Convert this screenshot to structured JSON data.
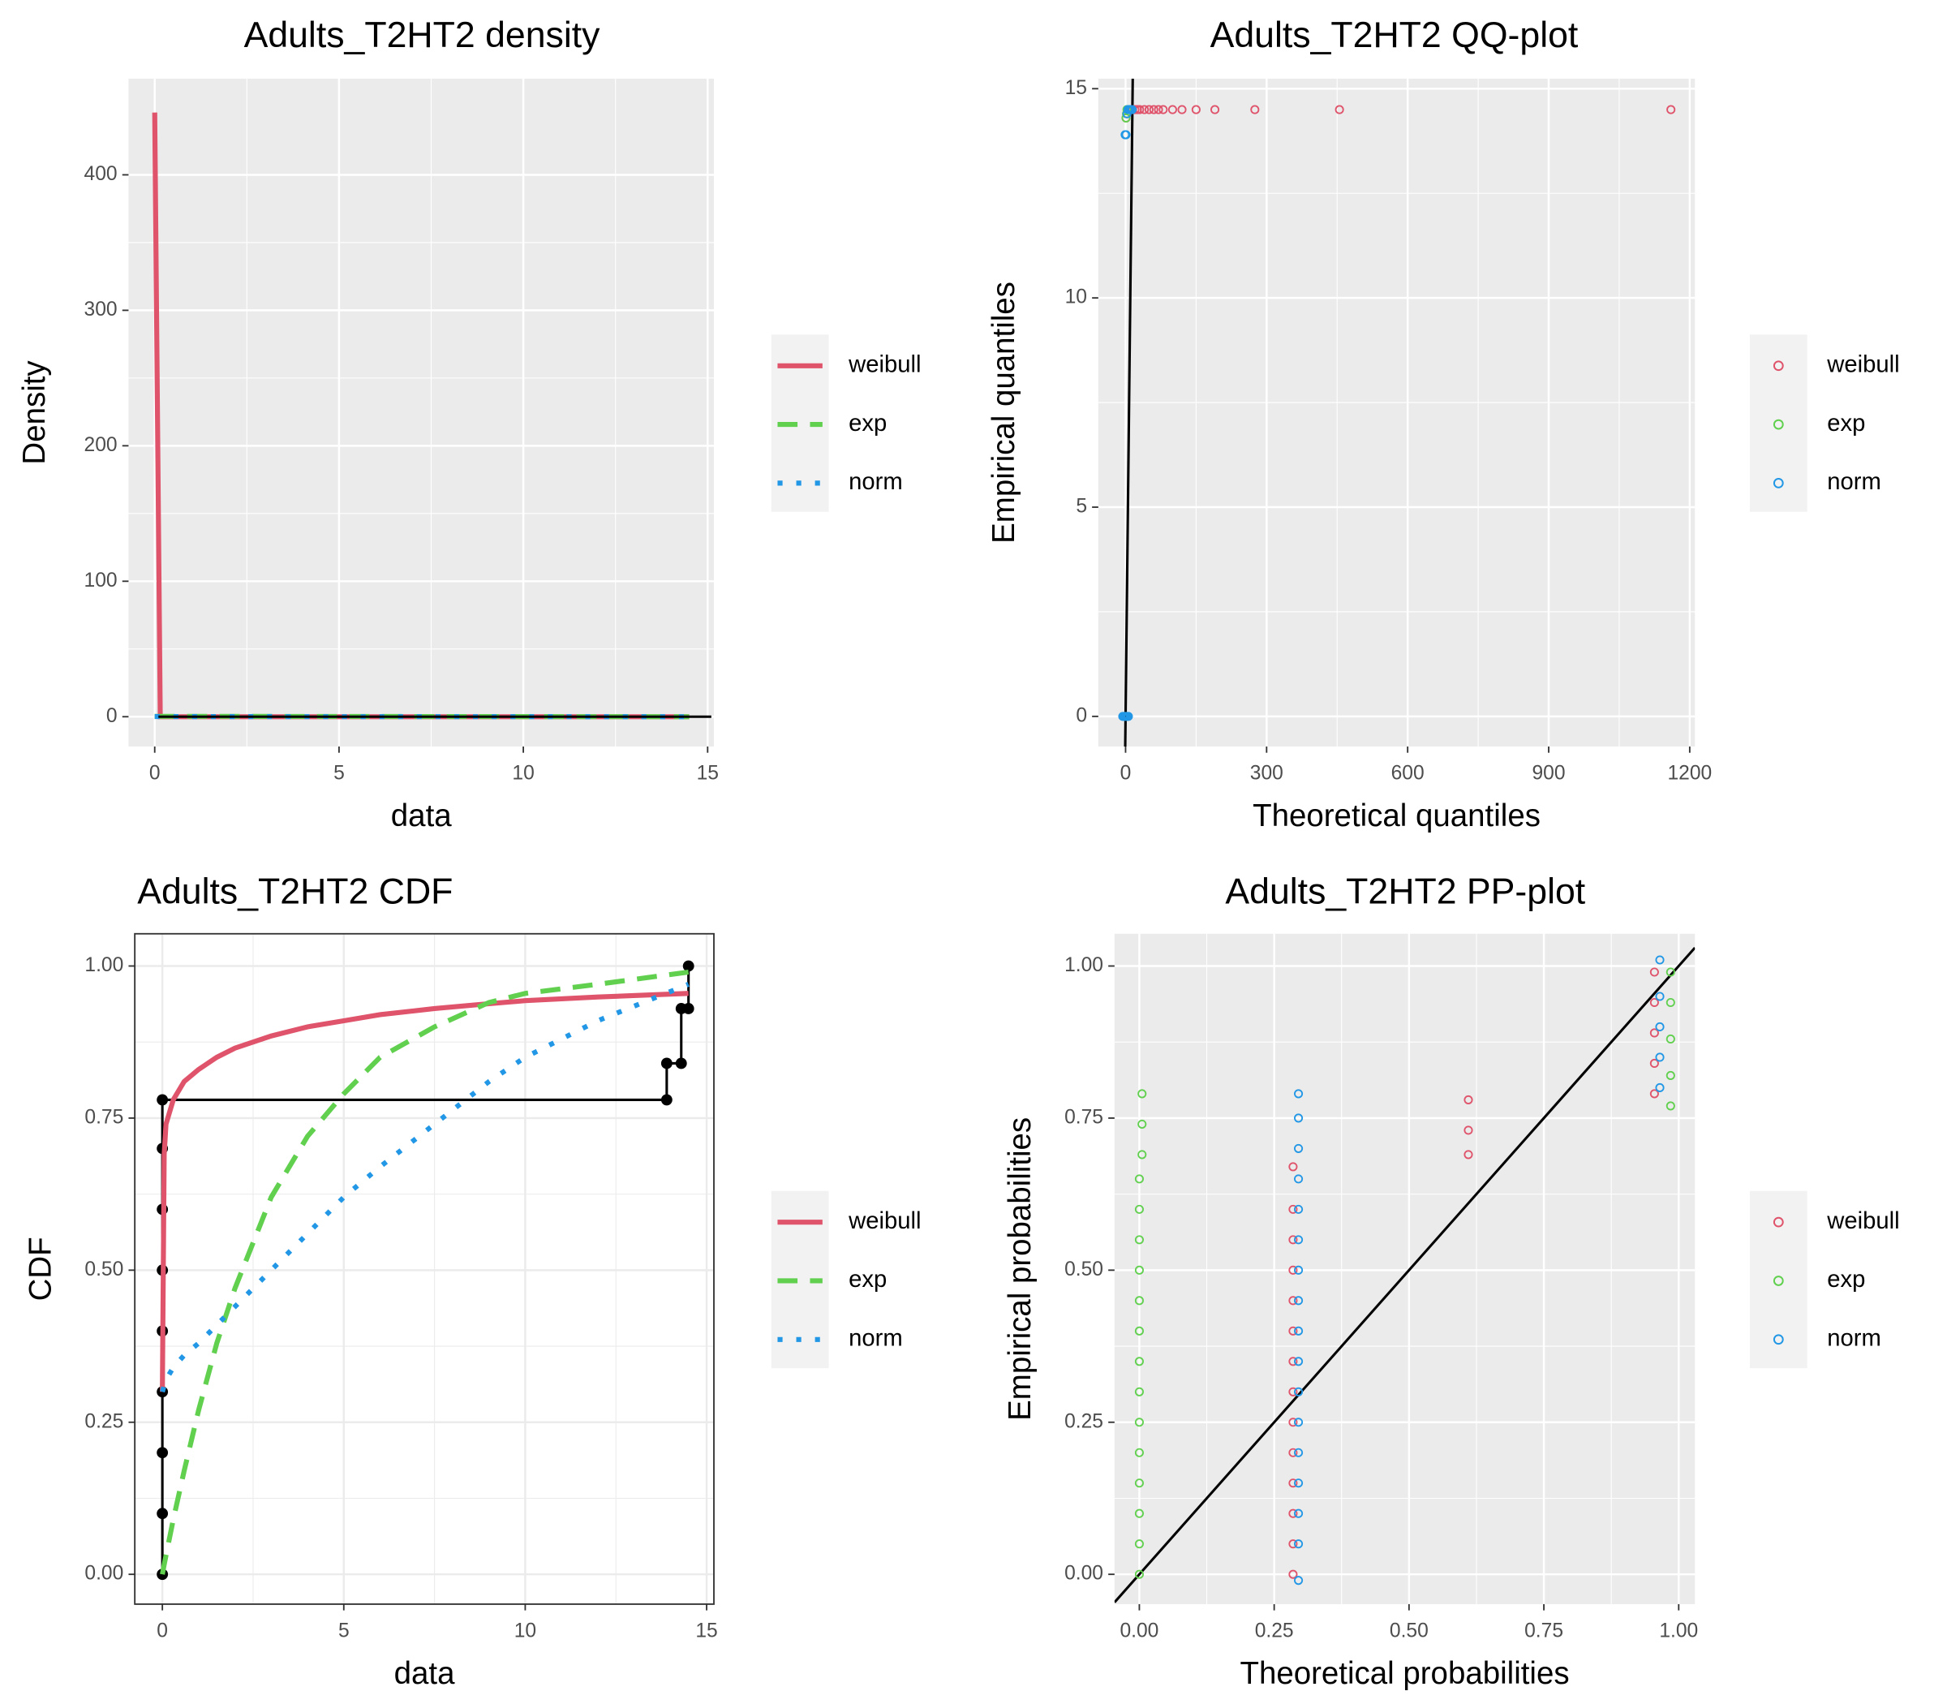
{
  "chart_data": [
    {
      "type": "line",
      "theme": "gray",
      "title": "Adults_T2HT2 density",
      "x_label": "data",
      "y_label": "Density",
      "legend": "right",
      "x": [
        0,
        0.15,
        14.5
      ],
      "series": [
        {
          "name": "weibull",
          "color": "#DF536B",
          "linestyle": "solid",
          "values": [
            446,
            0,
            0
          ]
        },
        {
          "name": "exp",
          "color": "#61D04F",
          "linestyle": "dashed",
          "values": [
            0.3,
            0.29,
            0
          ]
        },
        {
          "name": "norm",
          "color": "#2297E6",
          "linestyle": "dotted",
          "values": [
            0.1,
            0.1,
            0
          ]
        }
      ],
      "empirical": {
        "x": [
          0.1,
          15.1
        ],
        "values": [
          0,
          0
        ]
      },
      "xlim": [
        -0.71,
        15.17
      ],
      "ylim": [
        -22,
        471
      ],
      "xticks": [
        0,
        5,
        10,
        15
      ],
      "yticks": [
        0,
        100,
        200,
        300,
        400
      ],
      "grid": true
    },
    {
      "type": "scatter",
      "theme": "gray",
      "title": "Adults_T2HT2 QQ-plot",
      "x_label": "Theoretical quantiles",
      "y_label": "Empirical quantiles",
      "legend": "right",
      "diagonal": true,
      "series": [
        {
          "name": "weibull",
          "color": "#DF536B",
          "x": [
            1,
            3,
            6,
            10,
            15,
            20,
            25,
            30,
            40,
            50,
            60,
            70,
            80,
            100,
            120,
            150,
            190,
            275,
            455,
            1160
          ],
          "values": [
            14.3,
            14.4,
            14.5,
            14.5,
            14.5,
            14.5,
            14.5,
            14.5,
            14.5,
            14.5,
            14.5,
            14.5,
            14.5,
            14.5,
            14.5,
            14.5,
            14.5,
            14.5,
            14.5,
            14.5
          ]
        },
        {
          "name": "exp",
          "color": "#61D04F",
          "x": [
            -2,
            0,
            1,
            2,
            3
          ],
          "values": [
            0,
            0,
            14.3,
            14.4,
            14.5
          ]
        },
        {
          "name": "norm",
          "color": "#2297E6",
          "x": [
            -6,
            -4,
            -2,
            0,
            2,
            4,
            6,
            -1,
            1,
            3,
            5,
            8,
            11,
            14
          ],
          "values": [
            0,
            0,
            0,
            0,
            0,
            0,
            0,
            13.9,
            13.9,
            14.4,
            14.5,
            14.5,
            14.5,
            14.5
          ]
        }
      ],
      "xlim": [
        -58,
        1211
      ],
      "ylim": [
        -0.72,
        15.24
      ],
      "xticks": [
        0,
        300,
        600,
        900,
        1200
      ],
      "yticks": [
        0,
        5,
        10,
        15
      ],
      "grid": true
    },
    {
      "type": "line",
      "theme": "bw",
      "title": "Adults_T2HT2 CDF",
      "x_label": "data",
      "y_label": "CDF",
      "legend": "right",
      "x": [
        0,
        0.05,
        0.1,
        0.3,
        0.6,
        1,
        1.5,
        2,
        3,
        4,
        5,
        6,
        7.5,
        9,
        10,
        12,
        14.5
      ],
      "series": [
        {
          "name": "weibull",
          "color": "#DF536B",
          "linestyle": "solid",
          "values": [
            0.3,
            0.69,
            0.74,
            0.78,
            0.81,
            0.83,
            0.85,
            0.865,
            0.885,
            0.9,
            0.91,
            0.92,
            0.93,
            0.938,
            0.943,
            0.949,
            0.955
          ]
        },
        {
          "name": "exp",
          "color": "#61D04F",
          "linestyle": "dashed",
          "values": [
            0,
            0.016,
            0.031,
            0.09,
            0.17,
            0.27,
            0.38,
            0.47,
            0.62,
            0.72,
            0.79,
            0.85,
            0.9,
            0.94,
            0.955,
            0.97,
            0.99
          ]
        },
        {
          "name": "norm",
          "color": "#2297E6",
          "linestyle": "dotted",
          "values": [
            0.3,
            0.31,
            0.32,
            0.34,
            0.36,
            0.38,
            0.41,
            0.44,
            0.5,
            0.56,
            0.62,
            0.67,
            0.74,
            0.81,
            0.85,
            0.91,
            0.97
          ]
        }
      ],
      "empirical": {
        "x": [
          0,
          0,
          0,
          0,
          0,
          0,
          0,
          0,
          0,
          13.9,
          13.9,
          14.3,
          14.3,
          14.5,
          14.5
        ],
        "values": [
          0,
          0.1,
          0.2,
          0.3,
          0.4,
          0.5,
          0.6,
          0.7,
          0.78,
          0.78,
          0.84,
          0.84,
          0.93,
          0.93,
          1.0
        ]
      },
      "xlim": [
        -0.76,
        15.2
      ],
      "ylim": [
        -0.049,
        1.053
      ],
      "xticks": [
        0,
        5,
        10,
        15
      ],
      "yticks": [
        {
          "value": 0,
          "label": "0.00"
        },
        {
          "value": 0.25,
          "label": "0.25"
        },
        {
          "value": 0.5,
          "label": "0.50"
        },
        {
          "value": 0.75,
          "label": "0.75"
        },
        {
          "value": 1,
          "label": "1.00"
        }
      ],
      "grid": true
    },
    {
      "type": "scatter",
      "theme": "gray",
      "title": "Adults_T2HT2 PP-plot",
      "x_label": "Theoretical probabilities",
      "y_label": "Empirical probabilities",
      "legend": "right",
      "diagonal": true,
      "series": [
        {
          "name": "weibull",
          "color": "#DF536B",
          "x": [
            0.285,
            0.285,
            0.285,
            0.285,
            0.285,
            0.285,
            0.285,
            0.285,
            0.285,
            0.285,
            0.285,
            0.285,
            0.285,
            0.285,
            0.61,
            0.61,
            0.61,
            0.955,
            0.955,
            0.955,
            0.955,
            0.955
          ],
          "values": [
            0,
            0.05,
            0.1,
            0.15,
            0.2,
            0.25,
            0.3,
            0.35,
            0.4,
            0.45,
            0.5,
            0.55,
            0.6,
            0.67,
            0.69,
            0.73,
            0.78,
            0.79,
            0.84,
            0.89,
            0.94,
            0.99
          ]
        },
        {
          "name": "exp",
          "color": "#61D04F",
          "x": [
            0,
            0,
            0,
            0,
            0,
            0,
            0,
            0,
            0,
            0,
            0,
            0,
            0,
            0,
            0.005,
            0.005,
            0.005,
            0.985,
            0.985,
            0.985,
            0.985,
            0.985
          ],
          "values": [
            0,
            0.05,
            0.1,
            0.15,
            0.2,
            0.25,
            0.3,
            0.35,
            0.4,
            0.45,
            0.5,
            0.55,
            0.6,
            0.65,
            0.69,
            0.74,
            0.79,
            0.77,
            0.82,
            0.88,
            0.94,
            0.99
          ]
        },
        {
          "name": "norm",
          "color": "#2297E6",
          "x": [
            0.295,
            0.295,
            0.295,
            0.295,
            0.295,
            0.295,
            0.295,
            0.295,
            0.295,
            0.295,
            0.295,
            0.295,
            0.295,
            0.295,
            0.295,
            0.295,
            0.295,
            0.965,
            0.965,
            0.965,
            0.965,
            0.965
          ],
          "values": [
            -0.01,
            0.05,
            0.1,
            0.15,
            0.2,
            0.25,
            0.3,
            0.35,
            0.4,
            0.45,
            0.5,
            0.55,
            0.6,
            0.65,
            0.7,
            0.75,
            0.79,
            0.8,
            0.85,
            0.9,
            0.95,
            1.01
          ]
        }
      ],
      "xlim": [
        -0.046,
        1.03
      ],
      "ylim": [
        -0.049,
        1.053
      ],
      "xticks": [
        {
          "value": 0,
          "label": "0.00"
        },
        {
          "value": 0.25,
          "label": "0.25"
        },
        {
          "value": 0.5,
          "label": "0.50"
        },
        {
          "value": 0.75,
          "label": "0.75"
        },
        {
          "value": 1,
          "label": "1.00"
        }
      ],
      "yticks": [
        {
          "value": 0,
          "label": "0.00"
        },
        {
          "value": 0.25,
          "label": "0.25"
        },
        {
          "value": 0.5,
          "label": "0.50"
        },
        {
          "value": 0.75,
          "label": "0.75"
        },
        {
          "value": 1,
          "label": "1.00"
        }
      ],
      "grid": true
    }
  ]
}
